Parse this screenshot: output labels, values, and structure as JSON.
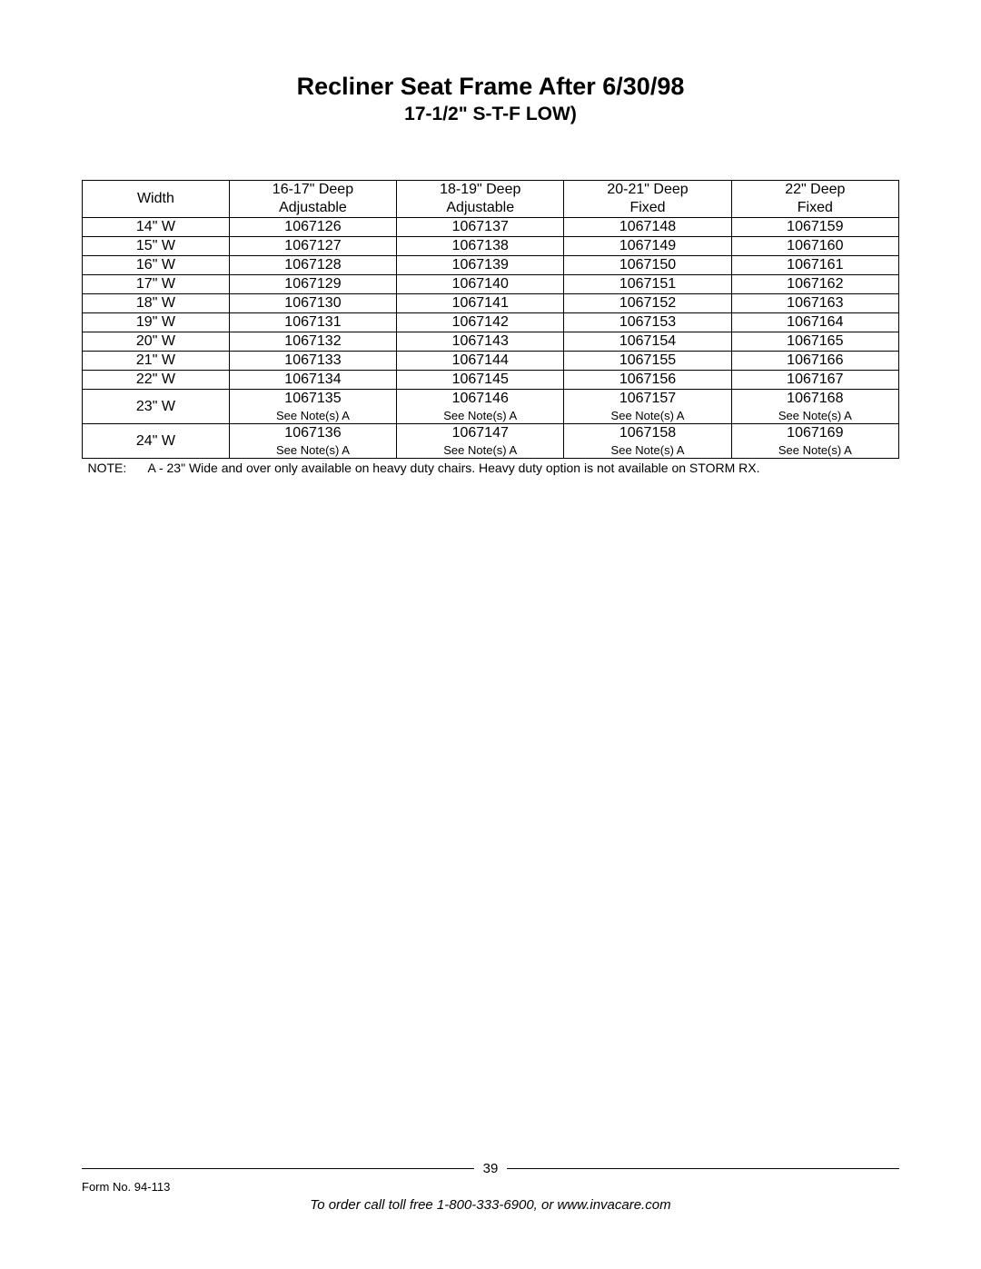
{
  "title": "Recliner Seat Frame After 6/30/98",
  "subtitle": "17-1/2\" S-T-F LOW)",
  "columns": {
    "width_header": "Width",
    "headers": [
      {
        "top": "16-17\" Deep",
        "bottom": "Adjustable"
      },
      {
        "top": "18-19\"  Deep",
        "bottom": "Adjustable"
      },
      {
        "top": "20-21\" Deep",
        "bottom": "Fixed"
      },
      {
        "top": "22\" Deep",
        "bottom": "Fixed"
      }
    ]
  },
  "rows": [
    {
      "width": "14\" W",
      "cells": [
        "1067126",
        "1067137",
        "1067148",
        "1067159"
      ],
      "note": false
    },
    {
      "width": "15\" W",
      "cells": [
        "1067127",
        "1067138",
        "1067149",
        "1067160"
      ],
      "note": false
    },
    {
      "width": "16\" W",
      "cells": [
        "1067128",
        "1067139",
        "1067150",
        "1067161"
      ],
      "note": false
    },
    {
      "width": "17\" W",
      "cells": [
        "1067129",
        "1067140",
        "1067151",
        "1067162"
      ],
      "note": false
    },
    {
      "width": "18\" W",
      "cells": [
        "1067130",
        "1067141",
        "1067152",
        "1067163"
      ],
      "note": false
    },
    {
      "width": "19\" W",
      "cells": [
        "1067131",
        "1067142",
        "1067153",
        "1067164"
      ],
      "note": false
    },
    {
      "width": "20\" W",
      "cells": [
        "1067132",
        "1067143",
        "1067154",
        "1067165"
      ],
      "note": false
    },
    {
      "width": "21\" W",
      "cells": [
        "1067133",
        "1067144",
        "1067155",
        "1067166"
      ],
      "note": false
    },
    {
      "width": "22\" W",
      "cells": [
        "1067134",
        "1067145",
        "1067156",
        "1067167"
      ],
      "note": false
    },
    {
      "width": "23\" W",
      "cells": [
        "1067135",
        "1067146",
        "1067157",
        "1067168"
      ],
      "note": true
    },
    {
      "width": "24\" W",
      "cells": [
        "1067136",
        "1067147",
        "1067158",
        "1067169"
      ],
      "note": true
    }
  ],
  "see_note_text": "See Note(s) A",
  "note_label": "NOTE:",
  "note_body": "A - 23\" Wide and over only available on heavy duty chairs.  Heavy duty option is not available on STORM RX.",
  "page_number": "39",
  "form_no": "Form No. 94-113",
  "order_line": "To order call toll free 1-800-333-6900, or www.invacare.com",
  "style": {
    "font_family": "Arial",
    "page_bg": "#ffffff",
    "text_color": "#000000",
    "border_color": "#000000",
    "title_fontsize": 27,
    "subtitle_fontsize": 21,
    "body_fontsize": 16,
    "note_fontsize": 13,
    "footer_fontsize": 15,
    "col_widths_pct": [
      18,
      20.5,
      20.5,
      20.5,
      20.5
    ]
  }
}
